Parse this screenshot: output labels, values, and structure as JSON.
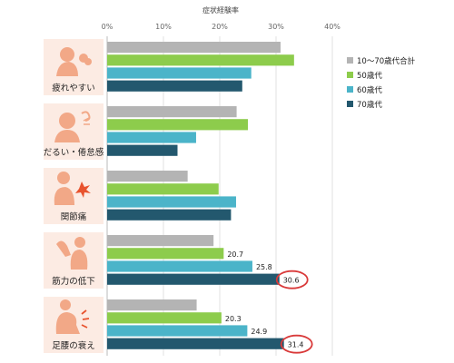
{
  "chart_data": {
    "type": "bar",
    "orientation": "horizontal",
    "axis_title": "症状経験率",
    "xlim": [
      0,
      40
    ],
    "ticks": [
      "0%",
      "10%",
      "20%",
      "30%",
      "40%"
    ],
    "tick_values": [
      0,
      10,
      20,
      30,
      40
    ],
    "grid": true,
    "legend_position": "right",
    "categories": [
      "疲れやすい",
      "だるい・倦怠感",
      "関節痛",
      "筋力の低下",
      "足腰の衰え"
    ],
    "category_icons": [
      "tired-person-icon",
      "sighing-person-icon",
      "joint-pain-icon",
      "weak-arm-icon",
      "back-pain-icon"
    ],
    "series": [
      {
        "name": "10～70歳代合計",
        "color": "#b4b4b4",
        "values": [
          30.8,
          23.0,
          14.3,
          18.9,
          15.9
        ],
        "labels": [
          "",
          "",
          "",
          "",
          ""
        ]
      },
      {
        "name": "50歳代",
        "color": "#8dcc4c",
        "values": [
          33.2,
          25.0,
          19.8,
          20.7,
          20.3
        ],
        "labels": [
          "",
          "",
          "",
          "20.7",
          "20.3"
        ]
      },
      {
        "name": "60歳代",
        "color": "#4bb4c9",
        "values": [
          25.6,
          15.8,
          22.9,
          25.8,
          24.9
        ],
        "labels": [
          "",
          "",
          "",
          "25.8",
          "24.9"
        ]
      },
      {
        "name": "70歳代",
        "color": "#23586e",
        "values": [
          24.0,
          12.5,
          22.0,
          30.6,
          31.4
        ],
        "labels": [
          "",
          "",
          "",
          "30.6",
          "31.4"
        ]
      }
    ],
    "highlighted": [
      {
        "category": 3,
        "series": 3
      },
      {
        "category": 4,
        "series": 3
      }
    ],
    "highlight_color": "#d93a3a",
    "category_panel_color": "#fcebe3",
    "icon_color": "#f2a887"
  }
}
